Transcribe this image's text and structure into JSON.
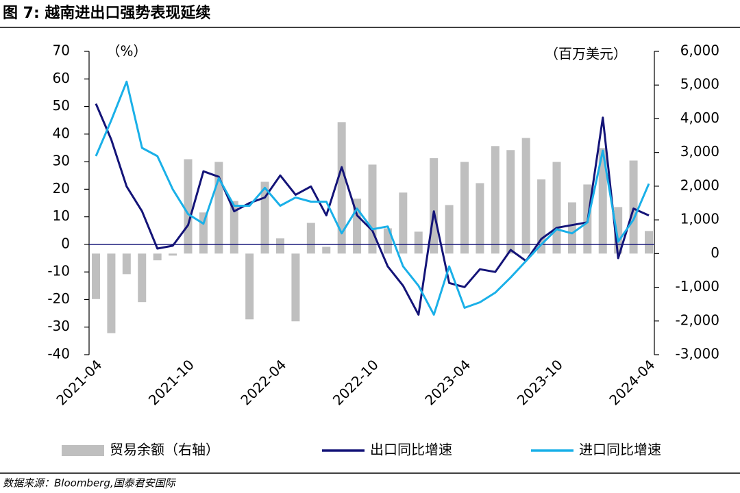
{
  "chart_data": {
    "type": "bar",
    "title": "图 7: 越南进出口强势表现延续",
    "source": "数据来源：Bloomberg,国泰君安国际",
    "y_unit": "（%）",
    "y2_unit": "（百万美元）",
    "categories": [
      "2021-04",
      null,
      null,
      null,
      null,
      null,
      "2021-10",
      null,
      null,
      null,
      null,
      null,
      "2022-04",
      null,
      null,
      null,
      null,
      null,
      "2022-10",
      null,
      null,
      null,
      null,
      null,
      "2023-04",
      null,
      null,
      null,
      null,
      null,
      "2023-10",
      null,
      null,
      null,
      null,
      null,
      "2024-04"
    ],
    "ylim": [
      -40,
      70
    ],
    "yticks": [
      -40,
      -30,
      -20,
      -10,
      0,
      10,
      20,
      30,
      40,
      50,
      60,
      70
    ],
    "y2lim": [
      -3000,
      6000
    ],
    "y2ticks": [
      {
        "value": -3000,
        "label": "-3,000"
      },
      {
        "value": -2000,
        "label": "-2,000"
      },
      {
        "value": -1000,
        "label": "-1,000"
      },
      0,
      {
        "value": 1000,
        "label": "1,000"
      },
      {
        "value": 2000,
        "label": "2,000"
      },
      {
        "value": 3000,
        "label": "3,000"
      },
      {
        "value": 4000,
        "label": "4,000"
      },
      {
        "value": 5000,
        "label": "5,000"
      },
      {
        "value": 6000,
        "label": "6,000"
      }
    ],
    "legend": "bottom",
    "series": [
      {
        "name": "贸易余额（右轴）",
        "type": "bar",
        "axis": "y2",
        "color": "#bfbfbf",
        "values": [
          -1350,
          -2360,
          -610,
          -1440,
          -200,
          -60,
          2800,
          1220,
          2720,
          1560,
          -1950,
          2130,
          450,
          -2010,
          910,
          200,
          3900,
          1630,
          2640,
          750,
          1810,
          650,
          2830,
          1440,
          2720,
          2090,
          3190,
          3070,
          3430,
          2200,
          2720,
          1520,
          2050,
          3130,
          1380,
          2760,
          670
        ]
      },
      {
        "name": "出口同比增速",
        "type": "line",
        "color": "#141478",
        "values": [
          51,
          38,
          21,
          12,
          -1.5,
          -0.5,
          7,
          26.5,
          24.5,
          12,
          15,
          17,
          25,
          18,
          21,
          10.5,
          28,
          10.5,
          5,
          -8,
          -15,
          -25.5,
          12,
          -14,
          -15.5,
          -9,
          -10,
          -2,
          -6,
          2,
          6,
          7,
          8,
          46,
          -5,
          13,
          10.5
        ]
      },
      {
        "name": "进口同比增速",
        "type": "line",
        "color": "#1ab0e8",
        "values": [
          32,
          45,
          59,
          35,
          32,
          20,
          11,
          7.5,
          24,
          14,
          14,
          20.5,
          14,
          17,
          15.5,
          15.5,
          4,
          13,
          5.5,
          6.5,
          -8,
          -15,
          -25.5,
          -8,
          -23,
          -21,
          -17.5,
          -12,
          -6,
          0,
          5.5,
          4,
          8,
          34,
          1,
          9,
          22
        ]
      }
    ]
  }
}
